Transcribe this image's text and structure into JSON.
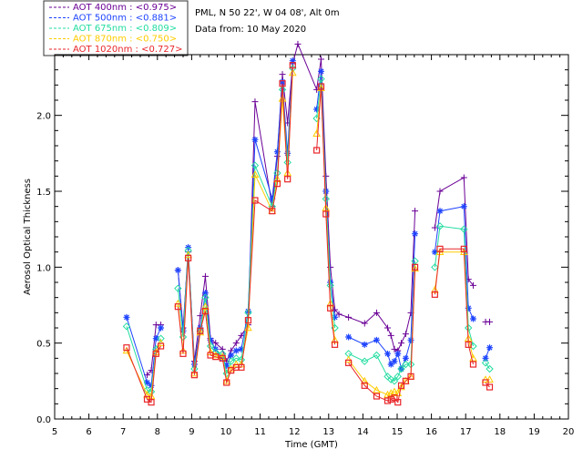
{
  "chart_data": {
    "type": "scatter",
    "title": "PML, N 50 22', W 04 08', Alt 0m",
    "subtitle": "Data from: 10 May 2020",
    "xlabel": "Time (GMT)",
    "ylabel": "Aerosol Optical Thickness",
    "xlim": [
      5,
      20
    ],
    "ylim": [
      0,
      2.4
    ],
    "xticks": [
      "5",
      "6",
      "7",
      "8",
      "9",
      "10",
      "11",
      "12",
      "13",
      "14",
      "15",
      "16",
      "17",
      "18",
      "19",
      "20"
    ],
    "yticks": [
      "0.0",
      "0.5",
      "1.0",
      "1.5",
      "2.0"
    ],
    "grid": false,
    "legend_position": "top-left",
    "x": [
      7.1,
      7.7,
      7.82,
      7.96,
      8.1,
      8.25,
      8.6,
      8.75,
      8.9,
      9.08,
      9.25,
      9.4,
      9.55,
      9.7,
      9.9,
      10.02,
      10.15,
      10.3,
      10.45,
      10.65,
      10.85,
      11.35,
      11.5,
      11.65,
      11.8,
      11.95,
      12.1,
      12.65,
      12.78,
      12.92,
      13.05,
      13.18,
      13.3,
      13.58,
      14.05,
      14.4,
      14.72,
      14.82,
      14.92,
      15.02,
      15.12,
      15.25,
      15.4,
      15.52,
      15.62,
      16.1,
      16.25,
      16.95,
      17.08,
      17.22,
      17.32,
      17.58,
      17.7
    ],
    "series": [
      {
        "name": "AOT  400nm",
        "legend": "AOT  400nm : <0.975>",
        "color": "#6a0096",
        "marker": "plus",
        "values": [
          null,
          0.29,
          0.32,
          0.62,
          0.62,
          null,
          0.98,
          0.6,
          1.1,
          0.38,
          0.68,
          0.94,
          0.53,
          0.5,
          0.46,
          0.38,
          0.45,
          0.5,
          0.55,
          0.62,
          2.09,
          1.4,
          1.73,
          2.27,
          1.95,
          2.34,
          2.47,
          2.17,
          2.37,
          1.6,
          1.0,
          0.72,
          0.69,
          0.67,
          0.63,
          0.7,
          0.6,
          0.55,
          0.46,
          0.45,
          0.5,
          0.56,
          0.7,
          1.37,
          null,
          1.26,
          1.5,
          1.59,
          0.92,
          0.88,
          null,
          0.64,
          0.64
        ]
      },
      {
        "name": "AOT  500nm",
        "legend": "AOT  500nm : <0.881>",
        "color": "#1e44ff",
        "marker": "star",
        "values": [
          0.67,
          0.24,
          0.22,
          0.53,
          0.6,
          null,
          0.98,
          0.58,
          1.13,
          0.36,
          0.6,
          0.83,
          0.52,
          0.46,
          0.4,
          0.35,
          0.42,
          0.45,
          0.46,
          0.71,
          1.84,
          1.45,
          1.76,
          2.22,
          1.75,
          2.36,
          null,
          2.04,
          2.29,
          1.5,
          0.9,
          0.67,
          null,
          0.54,
          0.49,
          0.52,
          0.43,
          0.36,
          0.38,
          0.43,
          0.33,
          0.4,
          0.52,
          1.22,
          null,
          1.1,
          1.37,
          1.4,
          0.73,
          0.66,
          null,
          0.4,
          0.47
        ]
      },
      {
        "name": "AOT  675nm",
        "legend": "AOT  675nm : <0.809>",
        "color": "#22dda0",
        "marker": "diamond",
        "values": [
          0.61,
          0.19,
          0.18,
          0.46,
          0.53,
          null,
          0.86,
          0.54,
          1.11,
          0.33,
          0.58,
          0.8,
          0.48,
          0.44,
          0.43,
          0.3,
          0.38,
          0.4,
          0.39,
          0.7,
          1.67,
          1.4,
          1.62,
          2.17,
          1.69,
          2.31,
          null,
          1.98,
          2.24,
          1.45,
          0.88,
          0.6,
          null,
          0.43,
          0.38,
          0.42,
          0.28,
          0.26,
          0.25,
          0.28,
          0.33,
          0.36,
          0.36,
          1.04,
          null,
          1.0,
          1.27,
          1.25,
          0.6,
          0.48,
          null,
          0.37,
          0.33
        ]
      },
      {
        "name": "AOT  870nm",
        "legend": "AOT  870nm : <0.750>",
        "color": "#ffcc00",
        "marker": "triangle",
        "values": [
          0.45,
          0.16,
          0.15,
          0.44,
          0.5,
          null,
          0.76,
          0.45,
          1.08,
          0.3,
          0.57,
          0.74,
          0.44,
          0.42,
          0.41,
          0.25,
          0.33,
          0.36,
          0.36,
          0.6,
          1.61,
          1.37,
          1.58,
          2.11,
          1.62,
          2.28,
          null,
          1.88,
          2.18,
          1.39,
          0.76,
          0.52,
          null,
          0.39,
          0.25,
          0.19,
          0.16,
          0.17,
          0.18,
          0.17,
          0.21,
          0.25,
          0.28,
          0.99,
          null,
          0.85,
          1.1,
          1.1,
          0.53,
          0.4,
          null,
          0.26,
          0.26
        ]
      },
      {
        "name": "AOT 1020nm",
        "legend": "AOT 1020nm : <0.727>",
        "color": "#e8262a",
        "marker": "square",
        "values": [
          0.47,
          0.13,
          0.11,
          0.43,
          0.48,
          null,
          0.74,
          0.43,
          1.06,
          0.29,
          0.58,
          0.71,
          0.42,
          0.41,
          0.4,
          0.24,
          0.32,
          0.34,
          0.34,
          0.65,
          1.44,
          1.37,
          1.55,
          2.21,
          1.58,
          2.33,
          null,
          1.77,
          2.19,
          1.35,
          0.73,
          0.49,
          null,
          0.37,
          0.22,
          0.15,
          0.12,
          0.13,
          0.14,
          0.11,
          0.22,
          0.25,
          0.28,
          1.0,
          null,
          0.82,
          1.12,
          1.12,
          0.49,
          0.36,
          null,
          0.24,
          0.21
        ]
      }
    ]
  }
}
